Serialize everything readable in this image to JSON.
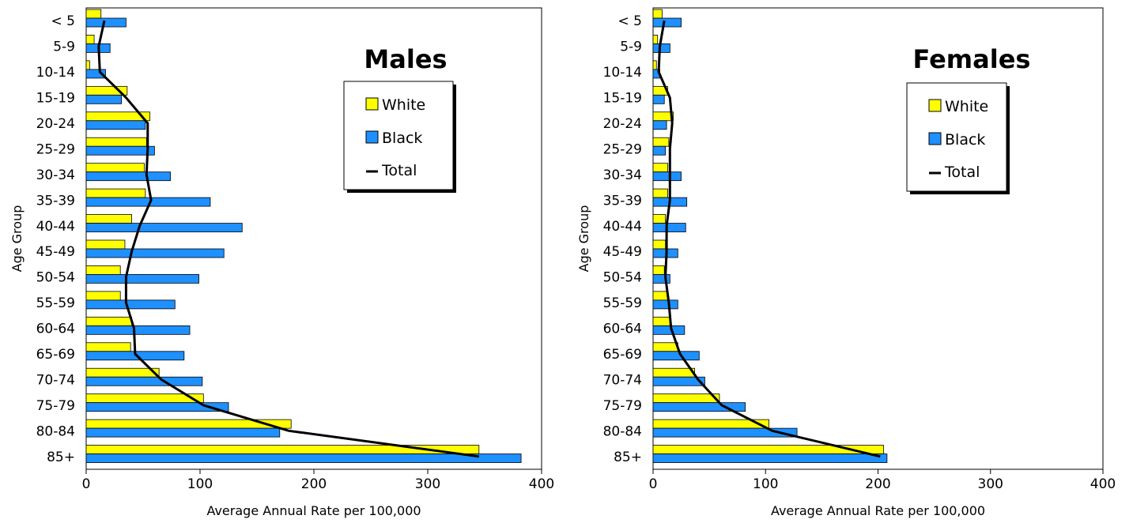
{
  "colors": {
    "white_series": "#ffff00",
    "black_series": "#1e90ff",
    "total_line": "#000000",
    "frame": "#000000"
  },
  "chart_data": [
    {
      "type": "bar",
      "title": "Males",
      "xlabel": "Average Annual Rate per 100,000",
      "ylabel": "Age Group",
      "xlim": [
        0,
        400
      ],
      "xticks": [
        "0",
        "100",
        "200",
        "300",
        "400"
      ],
      "categories": [
        "< 5",
        "5-9",
        "10-14",
        "15-19",
        "20-24",
        "25-29",
        "30-34",
        "35-39",
        "40-44",
        "45-49",
        "50-54",
        "55-59",
        "60-64",
        "65-69",
        "70-74",
        "75-79",
        "80-84",
        "85+"
      ],
      "series": [
        {
          "name": "White",
          "values": [
            13,
            7,
            3,
            36,
            56,
            53,
            51,
            52,
            40,
            34,
            30,
            30,
            40,
            39,
            64,
            103,
            180,
            345
          ]
        },
        {
          "name": "Black",
          "values": [
            35,
            21,
            17,
            31,
            52,
            60,
            74,
            109,
            137,
            121,
            99,
            78,
            91,
            86,
            102,
            125,
            170,
            382
          ]
        },
        {
          "name": "Total",
          "values": [
            16,
            11,
            12,
            35,
            54,
            54,
            53,
            57,
            47,
            40,
            35,
            35,
            42,
            43,
            66,
            103,
            178,
            345
          ]
        }
      ],
      "legend": {
        "position": "top-right",
        "items": [
          "White",
          "Black",
          "Total"
        ]
      },
      "grid": false
    },
    {
      "type": "bar",
      "title": "Females",
      "xlabel": "Average Annual Rate per 100,000",
      "ylabel": "Age Group",
      "xlim": [
        0,
        400
      ],
      "xticks": [
        "0",
        "100",
        "200",
        "300",
        "400"
      ],
      "categories": [
        "< 5",
        "5-9",
        "10-14",
        "15-19",
        "20-24",
        "25-29",
        "30-34",
        "35-39",
        "40-44",
        "45-49",
        "50-54",
        "55-59",
        "60-64",
        "65-69",
        "70-74",
        "75-79",
        "80-84",
        "85+"
      ],
      "series": [
        {
          "name": "White",
          "values": [
            8,
            4,
            3,
            13,
            18,
            14,
            13,
            13,
            11,
            11,
            10,
            13,
            15,
            22,
            37,
            59,
            103,
            205
          ]
        },
        {
          "name": "Black",
          "values": [
            25,
            15,
            6,
            10,
            12,
            11,
            25,
            30,
            29,
            22,
            15,
            22,
            28,
            41,
            46,
            82,
            128,
            208
          ]
        },
        {
          "name": "Total",
          "values": [
            10,
            6,
            5,
            15,
            17,
            15,
            15,
            15,
            12,
            12,
            11,
            14,
            16,
            24,
            40,
            61,
            106,
            202
          ]
        }
      ],
      "legend": {
        "position": "top-right",
        "items": [
          "White",
          "Black",
          "Total"
        ]
      },
      "grid": false
    }
  ]
}
